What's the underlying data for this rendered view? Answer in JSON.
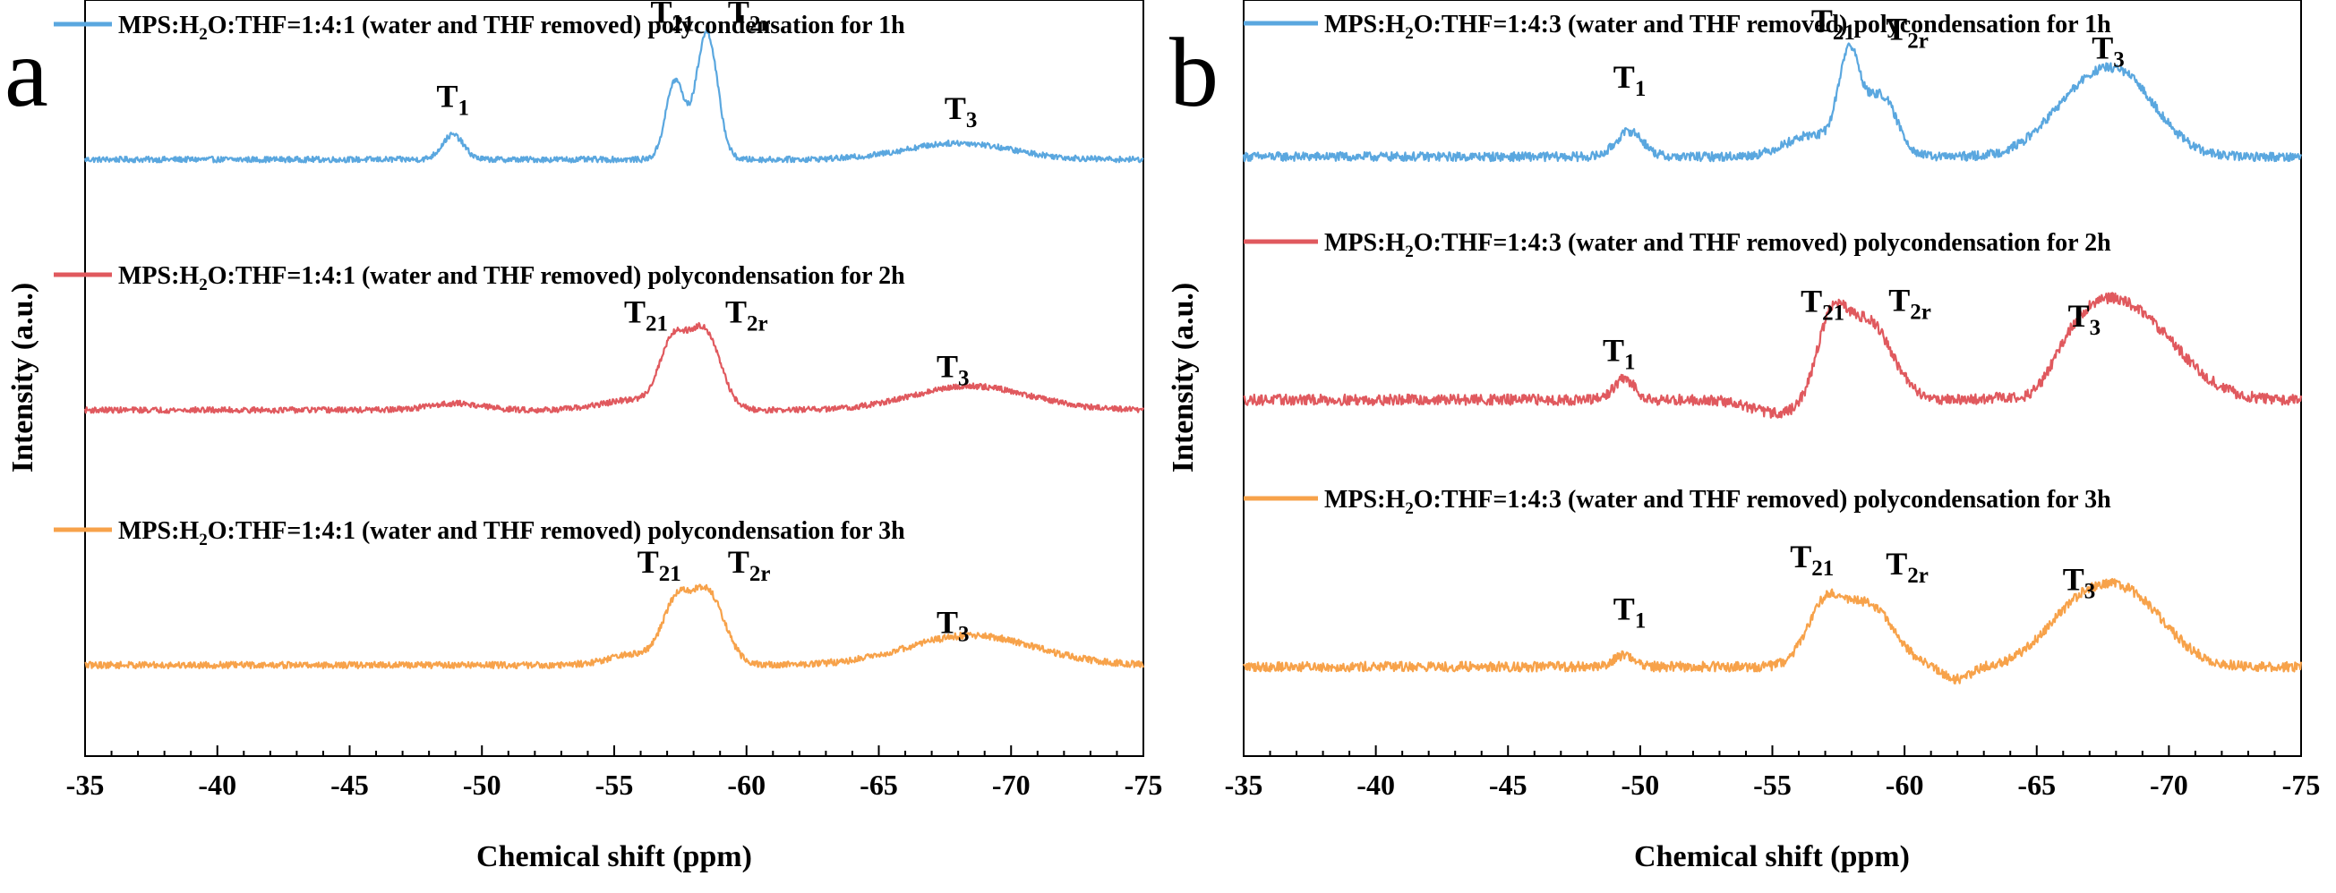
{
  "chart_data": [
    {
      "panel": "a",
      "type": "line",
      "xlabel": "Chemical shift (ppm)",
      "ylabel": "Intensity (a.u.)",
      "xlim": [
        -35,
        -75
      ],
      "ylim": [
        0,
        100
      ],
      "xticks": [
        -35,
        -40,
        -45,
        -50,
        -55,
        -60,
        -65,
        -70,
        -75
      ],
      "xtick_labels": [
        "-35",
        "-40",
        "-45",
        "-50",
        "-55",
        "-60",
        "-65",
        "-70",
        "-75"
      ],
      "series": [
        {
          "name": "MPS:H2O:THF=1:4:1 (water and THF removed) polycondensation for 1h",
          "legend_parts": [
            "MPS:H",
            "2",
            "O:THF=1:4:1 (water and THF removed) polycondensation for 1h"
          ],
          "color": "#5aa7df",
          "baseline": 7.8,
          "noise": 0.35,
          "peaks": [
            {
              "center": -48.9,
              "width": 0.4,
              "height": 3.0
            },
            {
              "center": -57.3,
              "width": 0.35,
              "height": 9.5
            },
            {
              "center": -58.5,
              "width": 0.4,
              "height": 15.5
            },
            {
              "center": -68.0,
              "width": 2.0,
              "height": 2.0
            }
          ],
          "labels": [
            {
              "main": "T",
              "sub": "1",
              "x": -48.9,
              "y": 14.2
            },
            {
              "main": "T",
              "sub": "21",
              "x": -57.2,
              "y": 24.4
            },
            {
              "main": "T",
              "sub": "2r",
              "x": -60.1,
              "y": 24.4
            },
            {
              "main": "T",
              "sub": "3",
              "x": -68.1,
              "y": 12.7
            }
          ]
        },
        {
          "name": "MPS:H2O:THF=1:4:1 (water and THF removed) polycondensation for 2h",
          "legend_parts": [
            "MPS:H",
            "2",
            "O:THF=1:4:1 (water and THF removed) polycondensation for 2h"
          ],
          "color": "#e0595e",
          "baseline": 7.8,
          "noise": 0.35,
          "peaks": [
            {
              "center": -49.0,
              "width": 1.0,
              "height": 0.8
            },
            {
              "center": -57.2,
              "width": 0.5,
              "height": 7.5
            },
            {
              "center": -58.4,
              "width": 0.6,
              "height": 9.6
            },
            {
              "center": -55.7,
              "width": 1.2,
              "height": 1.2
            },
            {
              "center": -68.5,
              "width": 2.2,
              "height": 2.9
            }
          ],
          "labels": [
            {
              "main": "T",
              "sub": "21",
              "x": -56.2,
              "y": 18.4
            },
            {
              "main": "T",
              "sub": "2r",
              "x": -60.0,
              "y": 18.4
            },
            {
              "main": "T",
              "sub": "3",
              "x": -67.8,
              "y": 11.8
            }
          ]
        },
        {
          "name": "MPS:H2O:THF=1:4:1 (water and THF removed) polycondensation for 3h",
          "legend_parts": [
            "MPS:H",
            "2",
            "O:THF=1:4:1 (water and THF removed) polycondensation for 3h"
          ],
          "color": "#f7a24a",
          "baseline": 7.8,
          "noise": 0.4,
          "peaks": [
            {
              "center": -55.8,
              "width": 1.0,
              "height": 1.3
            },
            {
              "center": -57.3,
              "width": 0.5,
              "height": 6.5
            },
            {
              "center": -58.5,
              "width": 0.65,
              "height": 8.9
            },
            {
              "center": -68.5,
              "width": 2.4,
              "height": 3.6
            }
          ],
          "labels": [
            {
              "main": "T",
              "sub": "21",
              "x": -56.7,
              "y": 19.0
            },
            {
              "main": "T",
              "sub": "2r",
              "x": -60.1,
              "y": 19.0
            },
            {
              "main": "T",
              "sub": "3",
              "x": -67.8,
              "y": 11.7
            }
          ]
        }
      ]
    },
    {
      "panel": "b",
      "type": "line",
      "xlabel": "Chemical shift (ppm)",
      "ylabel": "Intensity (a.u.)",
      "xlim": [
        -35,
        -75
      ],
      "ylim": [
        0,
        100
      ],
      "xticks": [
        -35,
        -40,
        -45,
        -50,
        -55,
        -60,
        -65,
        -70,
        -75
      ],
      "xtick_labels": [
        "-35",
        "-40",
        "-45",
        "-50",
        "-55",
        "-60",
        "-65",
        "-70",
        "-75"
      ],
      "series": [
        {
          "name": "MPS:H2O:THF=1:4:3 (water and THF removed) polycondensation for 1h",
          "legend_parts": [
            "MPS:H",
            "2",
            "O:THF=1:4:3 (water and THF removed) polycondensation for 1h"
          ],
          "color": "#5aa7df",
          "baseline": 7.6,
          "noise": 0.55,
          "peaks": [
            {
              "center": -49.6,
              "width": 0.5,
              "height": 3.1
            },
            {
              "center": -57.9,
              "width": 0.4,
              "height": 11.5
            },
            {
              "center": -59.1,
              "width": 0.6,
              "height": 7.4
            },
            {
              "center": -56.5,
              "width": 1.0,
              "height": 2.6
            },
            {
              "center": -66.7,
              "width": 1.4,
              "height": 6.5
            },
            {
              "center": -68.5,
              "width": 1.3,
              "height": 7.0
            }
          ],
          "labels": [
            {
              "main": "T",
              "sub": "1",
              "x": -49.6,
              "y": 16.0
            },
            {
              "main": "T",
              "sub": "21",
              "x": -57.3,
              "y": 22.8
            },
            {
              "main": "T",
              "sub": "2r",
              "x": -60.1,
              "y": 21.8
            },
            {
              "main": "T",
              "sub": "3",
              "x": -67.7,
              "y": 19.5
            }
          ]
        },
        {
          "name": "MPS:H2O:THF=1:4:3 (water and THF removed) polycondensation for 2h",
          "legend_parts": [
            "MPS:H",
            "2",
            "O:THF=1:4:3 (water and THF removed) polycondensation for 2h"
          ],
          "color": "#e0595e",
          "baseline": 8.5,
          "noise": 0.65,
          "peaks": [
            {
              "center": -49.4,
              "width": 0.4,
              "height": 2.5
            },
            {
              "center": -57.2,
              "width": 0.55,
              "height": 8.5
            },
            {
              "center": -58.6,
              "width": 0.9,
              "height": 9.6
            },
            {
              "center": -55.2,
              "width": 1.0,
              "height": -1.6
            },
            {
              "center": -65.0,
              "width": 0.6,
              "height": -1.7
            },
            {
              "center": -66.8,
              "width": 1.3,
              "height": 6.2
            },
            {
              "center": -68.8,
              "width": 1.7,
              "height": 9.2
            }
          ],
          "labels": [
            {
              "main": "T",
              "sub": "1",
              "x": -49.2,
              "y": 13.2
            },
            {
              "main": "T",
              "sub": "21",
              "x": -56.9,
              "y": 19.2
            },
            {
              "main": "T",
              "sub": "2r",
              "x": -60.2,
              "y": 19.3
            },
            {
              "main": "T",
              "sub": "3",
              "x": -66.8,
              "y": 17.4
            }
          ]
        },
        {
          "name": "MPS:H2O:THF=1:4:3 (water and THF removed) polycondensation for 3h",
          "legend_parts": [
            "MPS:H",
            "2",
            "O:THF=1:4:3 (water and THF removed) polycondensation for 3h"
          ],
          "color": "#f7a24a",
          "baseline": 7.6,
          "noise": 0.6,
          "peaks": [
            {
              "center": -49.4,
              "width": 0.4,
              "height": 1.4
            },
            {
              "center": -57.0,
              "width": 0.7,
              "height": 7.4
            },
            {
              "center": -58.7,
              "width": 0.9,
              "height": 7.3
            },
            {
              "center": -62.0,
              "width": 0.5,
              "height": -1.5
            },
            {
              "center": -66.5,
              "width": 1.3,
              "height": 6.0
            },
            {
              "center": -68.6,
              "width": 1.4,
              "height": 7.6
            }
          ],
          "labels": [
            {
              "main": "T",
              "sub": "1",
              "x": -49.6,
              "y": 13.3
            },
            {
              "main": "T",
              "sub": "21",
              "x": -56.5,
              "y": 19.7
            },
            {
              "main": "T",
              "sub": "2r",
              "x": -60.1,
              "y": 18.8
            },
            {
              "main": "T",
              "sub": "3",
              "x": -66.6,
              "y": 16.9
            }
          ]
        }
      ]
    }
  ]
}
